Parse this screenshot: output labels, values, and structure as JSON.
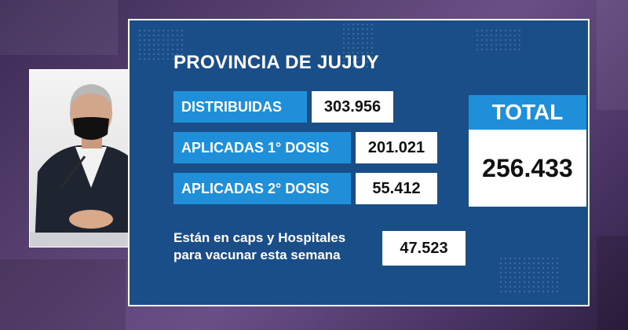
{
  "panel": {
    "title": "PROVINCIA DE JUJUY",
    "rows": [
      {
        "label": "DISTRIBUIDAS",
        "value": "303.956"
      },
      {
        "label": "APLICADAS 1° DOSIS",
        "value": "201.021"
      },
      {
        "label": "APLICADAS 2° DOSIS",
        "value": "55.412"
      }
    ],
    "total": {
      "label": "TOTAL",
      "value": "256.433"
    },
    "week": {
      "line1": "Están en caps y Hospitales",
      "line2": "para vacunar esta semana",
      "value": "47.523"
    }
  },
  "colors": {
    "panel_bg": "#1a4e88",
    "label_bg": "#1e8fd8",
    "value_bg": "#ffffff",
    "page_bg": "#57406f"
  }
}
